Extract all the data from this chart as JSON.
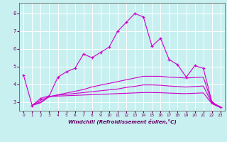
{
  "title": "",
  "xlabel": "Windchill (Refroidissement éolien,°C)",
  "ylabel": "",
  "bg_color": "#c8f0f0",
  "line_color": "#cc00cc",
  "grid_color": "#ffffff",
  "xlim": [
    -0.5,
    23.5
  ],
  "ylim": [
    2.5,
    8.6
  ],
  "xticks": [
    0,
    1,
    2,
    3,
    4,
    5,
    6,
    7,
    8,
    9,
    10,
    11,
    12,
    13,
    14,
    15,
    16,
    17,
    18,
    19,
    20,
    21,
    22,
    23
  ],
  "yticks": [
    3,
    4,
    5,
    6,
    7,
    8
  ],
  "main_line": {
    "x": [
      0,
      1,
      2,
      3,
      4,
      5,
      6,
      7,
      8,
      9,
      10,
      11,
      12,
      13,
      14,
      15,
      16,
      17,
      18,
      19,
      20,
      21,
      22,
      23
    ],
    "y": [
      4.5,
      2.8,
      3.2,
      3.35,
      4.4,
      4.7,
      4.9,
      5.7,
      5.5,
      5.8,
      6.1,
      7.0,
      7.5,
      8.0,
      7.8,
      6.15,
      6.6,
      5.4,
      5.1,
      4.4,
      5.05,
      4.9,
      3.0,
      2.7
    ]
  },
  "line2": {
    "x": [
      1,
      2,
      3,
      4,
      5,
      6,
      7,
      8,
      9,
      10,
      11,
      12,
      13,
      14,
      15,
      16,
      17,
      18,
      19,
      20,
      21,
      22,
      23
    ],
    "y": [
      2.8,
      3.1,
      3.3,
      3.4,
      3.5,
      3.6,
      3.7,
      3.85,
      3.95,
      4.05,
      4.15,
      4.25,
      4.35,
      4.45,
      4.45,
      4.45,
      4.4,
      4.38,
      4.35,
      4.38,
      4.4,
      2.95,
      2.72
    ]
  },
  "line3": {
    "x": [
      1,
      2,
      3,
      4,
      5,
      6,
      7,
      8,
      9,
      10,
      11,
      12,
      13,
      14,
      15,
      16,
      17,
      18,
      19,
      20,
      21,
      22,
      23
    ],
    "y": [
      2.8,
      3.0,
      3.3,
      3.38,
      3.43,
      3.48,
      3.53,
      3.58,
      3.63,
      3.68,
      3.73,
      3.82,
      3.88,
      3.96,
      3.96,
      3.94,
      3.9,
      3.87,
      3.84,
      3.87,
      3.9,
      2.92,
      2.7
    ]
  },
  "line4": {
    "x": [
      1,
      2,
      3,
      4,
      5,
      6,
      7,
      8,
      9,
      10,
      11,
      12,
      13,
      14,
      15,
      16,
      17,
      18,
      19,
      20,
      21,
      22,
      23
    ],
    "y": [
      2.8,
      2.95,
      3.3,
      3.33,
      3.35,
      3.37,
      3.39,
      3.41,
      3.43,
      3.45,
      3.47,
      3.49,
      3.51,
      3.53,
      3.53,
      3.52,
      3.5,
      3.48,
      3.47,
      3.49,
      3.51,
      2.9,
      2.68
    ]
  }
}
